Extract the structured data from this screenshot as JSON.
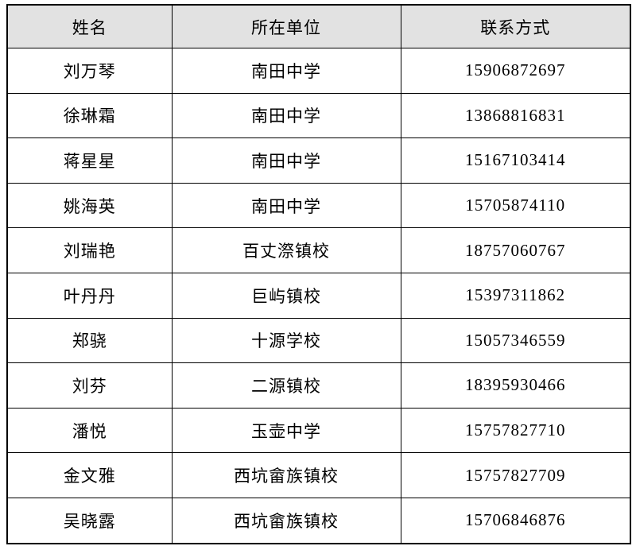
{
  "colors": {
    "header_bg": "#e2e2e2",
    "border": "#000000",
    "page_bg": "#ffffff"
  },
  "table": {
    "columns": [
      {
        "key": "name",
        "label": "姓名"
      },
      {
        "key": "unit",
        "label": "所在单位"
      },
      {
        "key": "phone",
        "label": "联系方式"
      }
    ],
    "rows": [
      {
        "name": "刘万琴",
        "unit": "南田中学",
        "phone": "15906872697"
      },
      {
        "name": "徐琳霜",
        "unit": "南田中学",
        "phone": "13868816831"
      },
      {
        "name": "蒋星星",
        "unit": "南田中学",
        "phone": "15167103414"
      },
      {
        "name": "姚海英",
        "unit": "南田中学",
        "phone": "15705874110"
      },
      {
        "name": "刘瑞艳",
        "unit": "百丈漈镇校",
        "phone": "18757060767"
      },
      {
        "name": "叶丹丹",
        "unit": "巨屿镇校",
        "phone": "15397311862"
      },
      {
        "name": "郑骁",
        "unit": "十源学校",
        "phone": "15057346559"
      },
      {
        "name": "刘芬",
        "unit": "二源镇校",
        "phone": "18395930466"
      },
      {
        "name": "潘悦",
        "unit": "玉壶中学",
        "phone": "15757827710"
      },
      {
        "name": "金文雅",
        "unit": "西坑畲族镇校",
        "phone": "15757827709"
      },
      {
        "name": "吴晓露",
        "unit": "西坑畲族镇校",
        "phone": "15706846876"
      }
    ]
  }
}
